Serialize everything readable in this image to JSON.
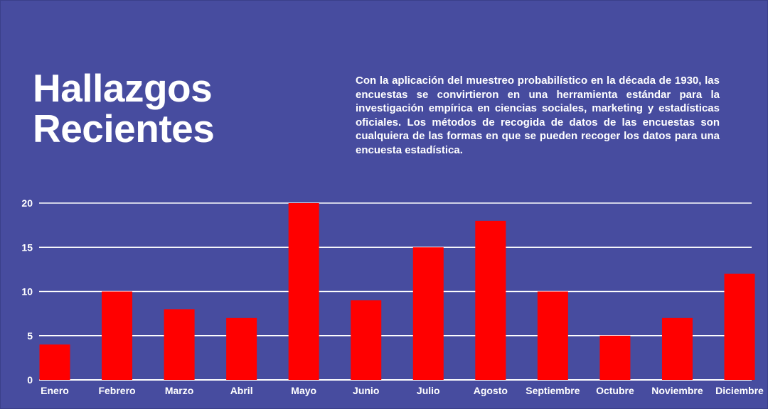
{
  "header": {
    "title": "Hallazgos Recientes",
    "description": "Con la aplicación del muestreo probabilístico en la década de 1930, las encuestas se convirtieron en una herramienta estándar para la investigación empírica en ciencias sociales, marketing y estadísticas oficiales. Los métodos de recogida de datos de las encuestas son cualquiera de las formas en que se pueden recoger los datos para una encuesta estadística."
  },
  "colors": {
    "background": "#474c9f",
    "bar": "#ff0000",
    "grid": "#ffffff",
    "text": "#ffffff"
  },
  "chart_data": {
    "type": "bar",
    "categories": [
      "Enero",
      "Febrero",
      "Marzo",
      "Abril",
      "Mayo",
      "Junio",
      "Julio",
      "Agosto",
      "Septiembre",
      "Octubre",
      "Noviembre",
      "Diciembre"
    ],
    "values": [
      4,
      10,
      8,
      7,
      20,
      9,
      15,
      18,
      10,
      5,
      7,
      12
    ],
    "ylim": [
      0,
      20
    ],
    "yticks": [
      0,
      5,
      10,
      15,
      20
    ],
    "grid": true,
    "legend": "none"
  }
}
